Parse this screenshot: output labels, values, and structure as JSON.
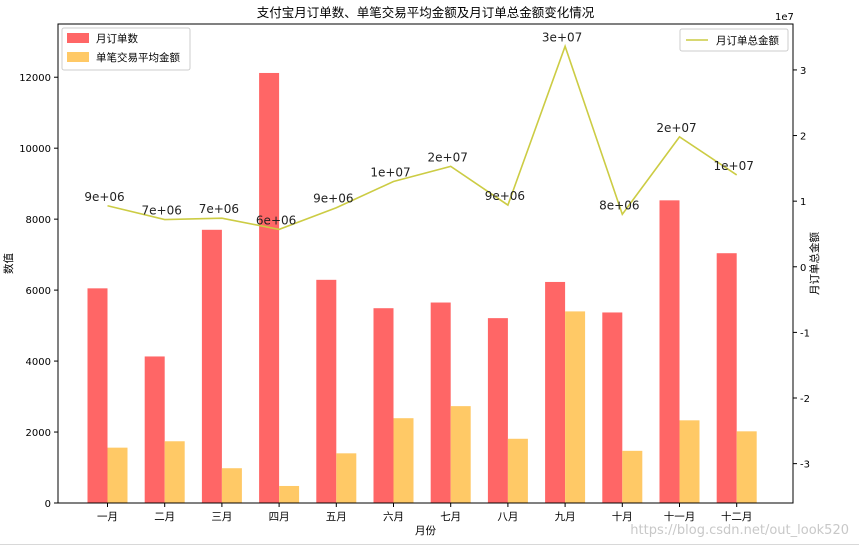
{
  "chart_data": {
    "type": "bar",
    "title": "支付宝月订单数、单笔交易平均金额及月订单总金额变化情况",
    "xlabel": "月份",
    "ylabel": "数值",
    "y2label": "月订单总金额",
    "categories": [
      "一月",
      "二月",
      "三月",
      "四月",
      "五月",
      "六月",
      "七月",
      "八月",
      "九月",
      "十月",
      "十一月",
      "十二月"
    ],
    "ylim": [
      0,
      13500
    ],
    "yticks": [
      0,
      2000,
      4000,
      6000,
      8000,
      10000,
      12000
    ],
    "y2lim": [
      -3.6,
      3.7
    ],
    "y2ticks": [
      -3,
      -2,
      -1,
      0,
      1,
      2,
      3
    ],
    "y2tick_labels": [
      "-3",
      "-2",
      "-1",
      "0",
      "1",
      "2",
      "3"
    ],
    "y2_offset_text": "1e7",
    "series": [
      {
        "name": "月订单数",
        "type": "bar",
        "color": "#ff6666",
        "values": [
          6050,
          4130,
          7700,
          12120,
          6290,
          5490,
          5650,
          5210,
          6230,
          5370,
          8530,
          7040
        ]
      },
      {
        "name": "单笔交易平均金额",
        "type": "bar",
        "color": "#ffc966",
        "values": [
          1560,
          1740,
          980,
          480,
          1400,
          2390,
          2730,
          1810,
          5400,
          1470,
          2330,
          2020
        ]
      },
      {
        "name": "月订单总金额",
        "type": "line",
        "axis": "right",
        "color": "#cccc44",
        "values": [
          9.3,
          7.2,
          7.4,
          5.7,
          9.0,
          13.0,
          15.3,
          9.4,
          33.6,
          8.0,
          19.8,
          14.0
        ],
        "unit_multiplier": 1000000,
        "labels": [
          "9e+06",
          "7e+06",
          "7e+06",
          "6e+06",
          "9e+06",
          "1e+07",
          "2e+07",
          "9e+06",
          "3e+07",
          "8e+06",
          "2e+07",
          "1e+07"
        ]
      }
    ],
    "legend_left": [
      "月订单数",
      "单笔交易平均金额"
    ],
    "legend_right": [
      "月订单总金额"
    ]
  },
  "watermark": "https://blog.csdn.net/out_look520"
}
